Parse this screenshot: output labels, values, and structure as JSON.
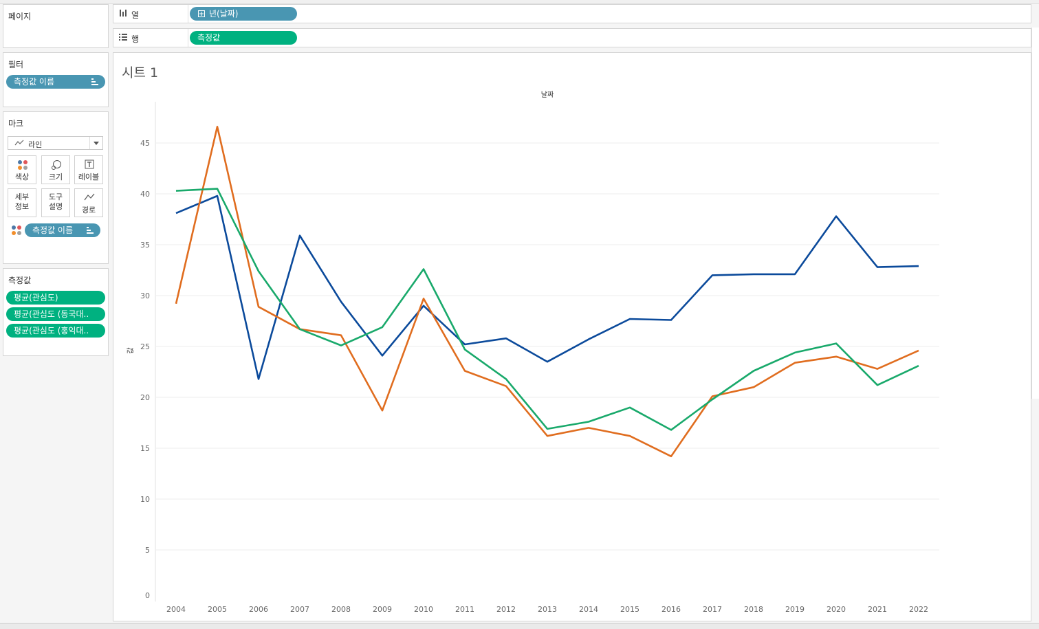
{
  "pages_panel": {
    "title": "페이지"
  },
  "filters_panel": {
    "title": "필터",
    "pill": "측정값 이름"
  },
  "marks_panel": {
    "title": "마크",
    "mark_type": "라인",
    "buttons": {
      "color": "색상",
      "size": "크기",
      "label": "레이블",
      "detail": [
        "세부",
        "정보"
      ],
      "tooltip": [
        "도구",
        "설명"
      ],
      "path": "경로"
    },
    "pill": "측정값 이름"
  },
  "measures_panel": {
    "title": "측정값",
    "items": [
      "평균(관심도)",
      "평균(관심도 (동국대..",
      "평균(관심도 (홍익대.."
    ]
  },
  "columns_shelf": {
    "label": "열",
    "pill": "년(날짜)"
  },
  "rows_shelf": {
    "label": "행",
    "pill": "측정값"
  },
  "sheet": {
    "title": "시트 1"
  },
  "chart_data": {
    "type": "line",
    "xlabel": "날짜",
    "ylabel": "값",
    "categories": [
      "2004",
      "2005",
      "2006",
      "2007",
      "2008",
      "2009",
      "2010",
      "2011",
      "2012",
      "2013",
      "2014",
      "2015",
      "2016",
      "2017",
      "2018",
      "2019",
      "2020",
      "2021",
      "2022"
    ],
    "y_ticks": [
      0,
      5,
      10,
      15,
      20,
      25,
      30,
      35,
      40,
      45
    ],
    "ylim": [
      0,
      48
    ],
    "grid": true,
    "series": [
      {
        "color": "#0b4a9b",
        "values": [
          38.1,
          39.8,
          21.8,
          35.9,
          29.4,
          24.1,
          29.0,
          25.2,
          25.8,
          23.5,
          25.7,
          27.7,
          27.6,
          32.0,
          32.1,
          32.1,
          37.8,
          32.8,
          32.9
        ]
      },
      {
        "color": "#e06d1f",
        "values": [
          29.2,
          46.6,
          28.9,
          26.7,
          26.1,
          18.7,
          29.7,
          22.6,
          21.1,
          16.2,
          17.0,
          16.2,
          14.2,
          20.1,
          21.0,
          23.4,
          24.0,
          22.8,
          24.6
        ]
      },
      {
        "color": "#19a96b",
        "values": [
          40.3,
          40.5,
          32.4,
          26.7,
          25.1,
          26.9,
          32.6,
          24.7,
          21.8,
          16.9,
          17.6,
          19.0,
          16.8,
          19.8,
          22.6,
          24.4,
          25.3,
          21.2,
          23.1
        ]
      }
    ]
  }
}
